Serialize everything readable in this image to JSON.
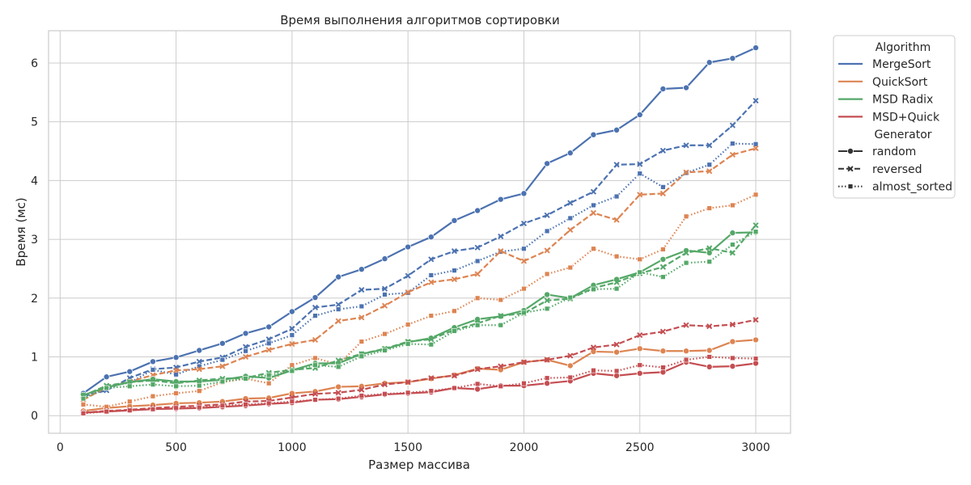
{
  "chart_data": {
    "type": "line",
    "title": "Время выполнения алгоритмов сортировки",
    "xlabel": "Размер массива",
    "ylabel": "Время (мс)",
    "xlim": [
      -50,
      3150
    ],
    "ylim": [
      -0.3,
      6.55
    ],
    "xticks": [
      0,
      500,
      1000,
      1500,
      2000,
      2500,
      3000
    ],
    "yticks": [
      0,
      1,
      2,
      3,
      4,
      5,
      6
    ],
    "grid": true,
    "legend_position": "outside-right",
    "legend": {
      "hue_title": "Algorithm",
      "style_title": "Generator",
      "algorithms": [
        {
          "name": "MergeSort",
          "color": "#4c72b0"
        },
        {
          "name": "QuickSort",
          "color": "#dd8452"
        },
        {
          "name": "MSD Radix",
          "color": "#55a868"
        },
        {
          "name": "MSD+Quick",
          "color": "#c44e52"
        }
      ],
      "generators": [
        {
          "name": "random",
          "dash": "solid",
          "marker": "circle"
        },
        {
          "name": "reversed",
          "dash": "dashed",
          "marker": "x"
        },
        {
          "name": "almost_sorted",
          "dash": "dotted",
          "marker": "square"
        }
      ]
    },
    "x": [
      100,
      200,
      300,
      400,
      500,
      600,
      700,
      800,
      900,
      1000,
      1100,
      1200,
      1300,
      1400,
      1500,
      1600,
      1700,
      1800,
      1900,
      2000,
      2100,
      2200,
      2300,
      2400,
      2500,
      2600,
      2700,
      2800,
      2900,
      3000
    ],
    "series": [
      {
        "algorithm": "MergeSort",
        "generator": "random",
        "values": [
          0.38,
          0.66,
          0.75,
          0.92,
          0.99,
          1.11,
          1.23,
          1.4,
          1.51,
          1.77,
          2.01,
          2.36,
          2.49,
          2.67,
          2.87,
          3.04,
          3.32,
          3.49,
          3.68,
          3.78,
          4.29,
          4.47,
          4.78,
          4.86,
          5.12,
          5.56,
          5.58,
          6.01,
          6.08,
          6.26
        ]
      },
      {
        "algorithm": "MergeSort",
        "generator": "reversed",
        "values": [
          0.33,
          0.43,
          0.64,
          0.79,
          0.82,
          0.92,
          0.99,
          1.17,
          1.3,
          1.48,
          1.84,
          1.89,
          2.14,
          2.16,
          2.38,
          2.66,
          2.8,
          2.86,
          3.05,
          3.27,
          3.41,
          3.62,
          3.81,
          4.27,
          4.28,
          4.51,
          4.6,
          4.6,
          4.94,
          5.36
        ]
      },
      {
        "algorithm": "MergeSort",
        "generator": "almost_sorted",
        "values": [
          0.29,
          0.5,
          0.56,
          0.78,
          0.7,
          0.84,
          0.95,
          1.1,
          1.23,
          1.37,
          1.7,
          1.81,
          1.86,
          2.06,
          2.09,
          2.39,
          2.47,
          2.63,
          2.79,
          2.84,
          3.14,
          3.36,
          3.58,
          3.73,
          4.12,
          3.89,
          4.13,
          4.27,
          4.63,
          4.62
        ]
      },
      {
        "algorithm": "QuickSort",
        "generator": "random",
        "values": [
          0.08,
          0.13,
          0.16,
          0.18,
          0.21,
          0.22,
          0.24,
          0.29,
          0.3,
          0.38,
          0.41,
          0.49,
          0.5,
          0.55,
          0.57,
          0.63,
          0.69,
          0.8,
          0.78,
          0.91,
          0.95,
          0.85,
          1.09,
          1.08,
          1.14,
          1.1,
          1.1,
          1.11,
          1.26,
          1.29
        ]
      },
      {
        "algorithm": "QuickSort",
        "generator": "reversed",
        "values": [
          0.27,
          0.48,
          0.58,
          0.69,
          0.77,
          0.79,
          0.84,
          1.0,
          1.12,
          1.22,
          1.29,
          1.61,
          1.67,
          1.87,
          2.1,
          2.27,
          2.32,
          2.41,
          2.8,
          2.63,
          2.81,
          3.16,
          3.45,
          3.33,
          3.76,
          3.78,
          4.14,
          4.16,
          4.44,
          4.55
        ]
      },
      {
        "algorithm": "QuickSort",
        "generator": "almost_sorted",
        "values": [
          0.19,
          0.15,
          0.24,
          0.33,
          0.38,
          0.42,
          0.57,
          0.63,
          0.55,
          0.86,
          0.98,
          0.87,
          1.26,
          1.39,
          1.55,
          1.7,
          1.78,
          2.0,
          1.97,
          2.16,
          2.41,
          2.52,
          2.84,
          2.71,
          2.66,
          2.83,
          3.39,
          3.53,
          3.58,
          3.76
        ]
      },
      {
        "algorithm": "MSD Radix",
        "generator": "random",
        "values": [
          0.35,
          0.48,
          0.57,
          0.62,
          0.58,
          0.58,
          0.61,
          0.67,
          0.64,
          0.77,
          0.89,
          0.89,
          1.05,
          1.13,
          1.25,
          1.32,
          1.5,
          1.64,
          1.69,
          1.79,
          2.06,
          2.0,
          2.22,
          2.32,
          2.44,
          2.66,
          2.81,
          2.77,
          3.11,
          3.12
        ]
      },
      {
        "algorithm": "MSD Radix",
        "generator": "reversed",
        "values": [
          0.34,
          0.51,
          0.57,
          0.6,
          0.55,
          0.6,
          0.63,
          0.64,
          0.73,
          0.78,
          0.81,
          0.94,
          1.05,
          1.14,
          1.26,
          1.3,
          1.46,
          1.57,
          1.7,
          1.74,
          1.96,
          1.99,
          2.17,
          2.27,
          2.42,
          2.53,
          2.77,
          2.85,
          2.77,
          3.24
        ]
      },
      {
        "algorithm": "MSD Radix",
        "generator": "almost_sorted",
        "values": [
          0.29,
          0.47,
          0.5,
          0.53,
          0.5,
          0.51,
          0.58,
          0.63,
          0.69,
          0.76,
          0.86,
          0.83,
          1.01,
          1.11,
          1.22,
          1.21,
          1.44,
          1.54,
          1.54,
          1.75,
          1.82,
          2.01,
          2.15,
          2.16,
          2.44,
          2.36,
          2.6,
          2.62,
          2.91,
          3.13
        ]
      },
      {
        "algorithm": "MSD+Quick",
        "generator": "random",
        "values": [
          0.05,
          0.07,
          0.09,
          0.11,
          0.12,
          0.13,
          0.15,
          0.17,
          0.2,
          0.22,
          0.27,
          0.28,
          0.32,
          0.36,
          0.38,
          0.4,
          0.47,
          0.45,
          0.51,
          0.51,
          0.55,
          0.59,
          0.72,
          0.68,
          0.72,
          0.74,
          0.91,
          0.83,
          0.84,
          0.89
        ]
      },
      {
        "algorithm": "MSD+Quick",
        "generator": "reversed",
        "values": [
          0.05,
          0.08,
          0.1,
          0.13,
          0.15,
          0.17,
          0.19,
          0.24,
          0.25,
          0.31,
          0.37,
          0.39,
          0.44,
          0.53,
          0.57,
          0.64,
          0.68,
          0.79,
          0.84,
          0.91,
          0.95,
          1.02,
          1.16,
          1.21,
          1.37,
          1.43,
          1.54,
          1.52,
          1.55,
          1.63
        ]
      },
      {
        "algorithm": "MSD+Quick",
        "generator": "almost_sorted",
        "values": [
          0.04,
          0.07,
          0.09,
          0.11,
          0.13,
          0.14,
          0.17,
          0.19,
          0.21,
          0.24,
          0.27,
          0.29,
          0.34,
          0.37,
          0.39,
          0.42,
          0.47,
          0.54,
          0.5,
          0.55,
          0.64,
          0.65,
          0.77,
          0.76,
          0.86,
          0.82,
          0.95,
          1.0,
          0.98,
          0.97
        ]
      }
    ]
  }
}
